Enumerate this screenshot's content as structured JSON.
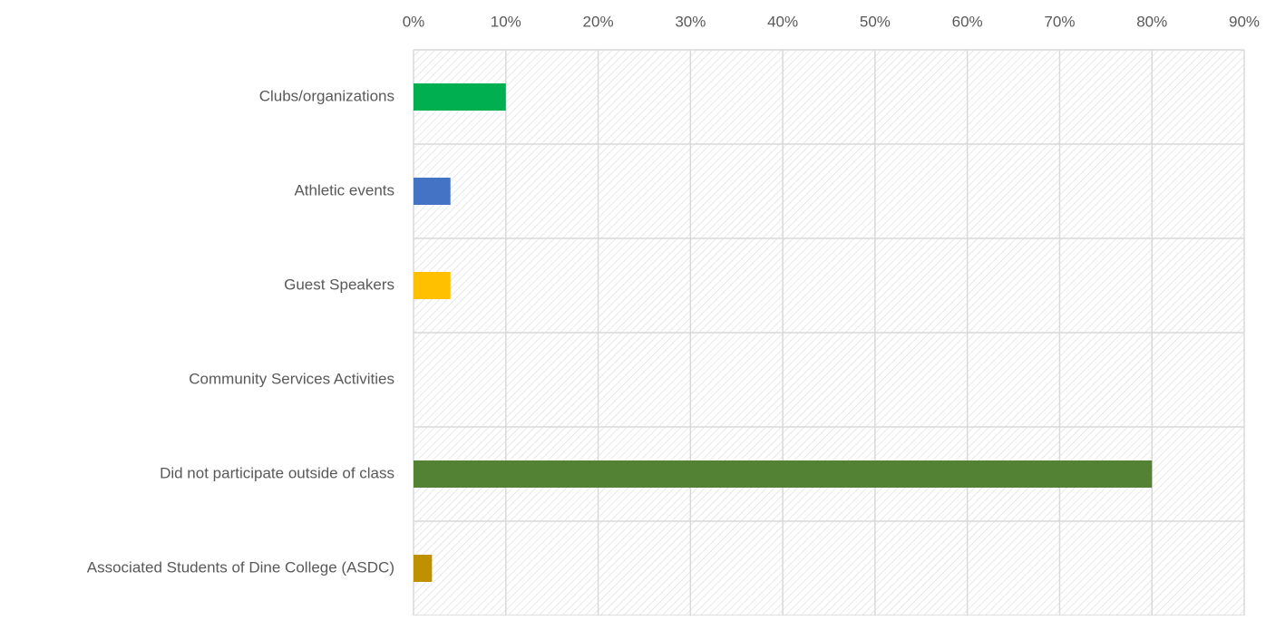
{
  "chart_data": {
    "type": "bar",
    "orientation": "horizontal",
    "categories": [
      "Clubs/organizations",
      "Athletic events",
      "Guest Speakers",
      "Community Services Activities",
      "Did not participate outside of class",
      "Associated Students of Dine College (ASDC)"
    ],
    "values": [
      10,
      4,
      4,
      0,
      80,
      2
    ],
    "colors": [
      "#00b050",
      "#4472c4",
      "#ffc000",
      "#a5a5a5",
      "#548235",
      "#bf9000"
    ],
    "xlim": [
      0,
      90
    ],
    "xticks": [
      {
        "value": 0,
        "label": "0%"
      },
      {
        "value": 10,
        "label": "10%"
      },
      {
        "value": 20,
        "label": "20%"
      },
      {
        "value": 30,
        "label": "30%"
      },
      {
        "value": 40,
        "label": "40%"
      },
      {
        "value": 50,
        "label": "50%"
      },
      {
        "value": 60,
        "label": "60%"
      },
      {
        "value": 70,
        "label": "70%"
      },
      {
        "value": 80,
        "label": "80%"
      },
      {
        "value": 90,
        "label": "90%"
      }
    ],
    "grid": true
  }
}
